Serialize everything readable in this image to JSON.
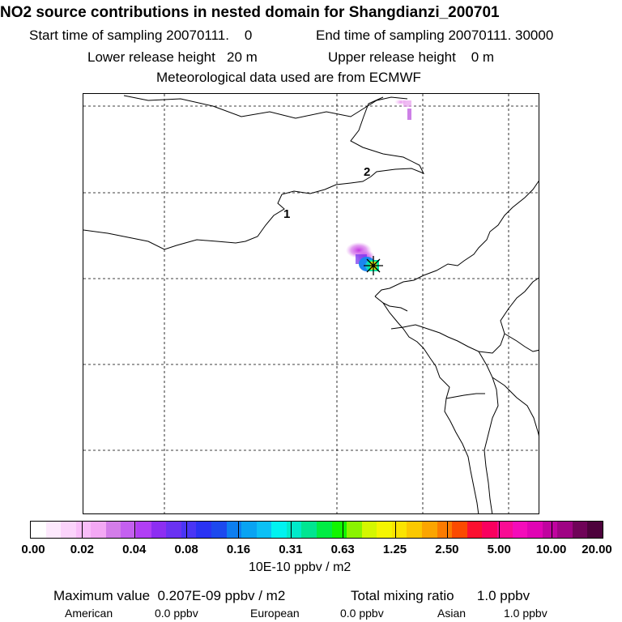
{
  "header": {
    "title": "NO2 source contributions in nested domain for Shangdianzi_200701",
    "start_time": "Start time of sampling 20070111.    0",
    "end_time": "End time of sampling 20070111. 30000",
    "lower_height": "Lower release height   20 m",
    "upper_height": "Upper release height    0 m",
    "met_data": "Meteorological data used are from ECMWF"
  },
  "map": {
    "labels": [
      "1",
      "2"
    ]
  },
  "colorbar": {
    "colors": [
      "#ffffff",
      "#fde9fd",
      "#fbd3fb",
      "#f9bdf9",
      "#f3a8f4",
      "#d37de9",
      "#c460f0",
      "#b13ef5",
      "#8d2ef2",
      "#6a32f2",
      "#4a35f5",
      "#2a33f3",
      "#1c49ee",
      "#0d7ef0",
      "#09a3f2",
      "#0cc0f5",
      "#00f2f0",
      "#00eaca",
      "#00e591",
      "#00ec44",
      "#12f500",
      "#8af300",
      "#d4f700",
      "#f5f500",
      "#fbe400",
      "#fbc800",
      "#fba500",
      "#fb7b00",
      "#fb4a00",
      "#fb1030",
      "#f9005e",
      "#f90c94",
      "#f40cba",
      "#e004b4",
      "#c0039f",
      "#9f0384",
      "#6f0358",
      "#4d023c"
    ],
    "tick_labels": [
      "0.00",
      "0.02",
      "0.04",
      "0.08",
      "0.16",
      "0.31",
      "0.63",
      "1.25",
      "2.50",
      "5.00",
      "10.00",
      "20.00"
    ],
    "units": "10E-10 ppbv / m2"
  },
  "footer": {
    "max_value": "Maximum value  0.207E-09 ppbv / m2",
    "total_mixing": "Total mixing ratio      1.0 ppbv",
    "american_label": "American",
    "american_value": "0.0 ppbv",
    "european_label": "European",
    "european_value": "0.0 ppbv",
    "asian_label": "Asian",
    "asian_value": "1.0 ppbv"
  }
}
